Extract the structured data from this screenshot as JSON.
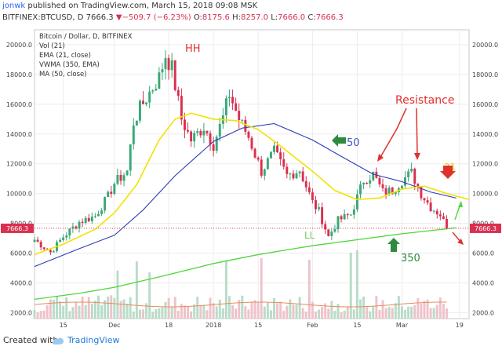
{
  "header": {
    "user": "jonwk",
    "published": "published on TradingView.com, March 15, 2018 09:08 MSK",
    "symbol": "BITFINEX:BTCUSD, D",
    "last": "7666.3",
    "change_arrow": "▼",
    "change": "−509.7 (−6.23%)",
    "o_label": "O:",
    "o": "8175.6",
    "h_label": "H:",
    "h": "8257.0",
    "l_label": "L:",
    "l": "7666.0",
    "c_label": "C:",
    "c": "7666.3"
  },
  "legend": [
    "Bitcoin / Dollar, D, BITFINEX",
    "Vol (21)",
    "EMA (21, close)",
    "VWMA (350, EMA)",
    "MA (50, close)"
  ],
  "annotations": {
    "hh": "HH",
    "resistance": "Resistance",
    "fifty": "50",
    "twentyone": "21",
    "ll": "LL",
    "three_fifty": "350"
  },
  "price_tag": "7666.3",
  "footer": {
    "created": "Created with",
    "brand": "TradingView"
  },
  "colors": {
    "up": "#3aa876",
    "down": "#d9304f",
    "ema21": "#f2e200",
    "ma50": "#2c3bb5",
    "vwma350": "#4fd63a",
    "volume_ma": "#e58d5e",
    "price_line": "#d9304f",
    "annotation_red": "#e0312c",
    "annotation_green": "#2e8b3e",
    "annotation_yellow": "#e6d200"
  },
  "chart_data": {
    "type": "candlestick",
    "interval": "D",
    "y_ticks": [
      2000,
      4000,
      6000,
      8000,
      10000,
      12000,
      14000,
      16000,
      18000,
      20000
    ],
    "y_tick_labels": [
      "2000.0",
      "4000.0",
      "6000.0",
      "8000.0",
      "10000.0",
      "12000.0",
      "14000.0",
      "16000.0",
      "18000.0",
      "20000.0"
    ],
    "ylim": [
      1600,
      21000
    ],
    "x_ticks": [
      "15",
      "Dec",
      "18",
      "2018",
      "15",
      "Feb",
      "15",
      "Mar",
      "19"
    ],
    "x_tick_dates": [
      "2017-11-15",
      "2017-12-01",
      "2017-12-18",
      "2018-01-01",
      "2018-01-15",
      "2018-02-01",
      "2018-02-15",
      "2018-03-01",
      "2018-03-19"
    ],
    "xlim": [
      "2017-11-06",
      "2018-03-22"
    ],
    "grid": true,
    "anchors": {
      "dates": [
        "2017-11-06",
        "2017-11-11",
        "2017-11-15",
        "2017-11-20",
        "2017-11-25",
        "2017-11-29",
        "2017-12-01",
        "2017-12-05",
        "2017-12-07",
        "2017-12-09",
        "2017-12-12",
        "2017-12-15",
        "2017-12-17",
        "2017-12-19",
        "2017-12-22",
        "2017-12-25",
        "2017-12-29",
        "2018-01-01",
        "2018-01-04",
        "2018-01-06",
        "2018-01-09",
        "2018-01-12",
        "2018-01-16",
        "2018-01-20",
        "2018-01-24",
        "2018-01-28",
        "2018-02-01",
        "2018-02-03",
        "2018-02-06",
        "2018-02-09",
        "2018-02-13",
        "2018-02-17",
        "2018-02-20",
        "2018-02-23",
        "2018-02-26",
        "2018-03-01",
        "2018-03-04",
        "2018-03-07",
        "2018-03-10",
        "2018-03-13",
        "2018-03-15"
      ],
      "close": [
        6900,
        6050,
        7100,
        8100,
        8500,
        9800,
        10700,
        11500,
        14800,
        15700,
        16800,
        17800,
        19300,
        18400,
        15000,
        13600,
        14500,
        13300,
        15100,
        16700,
        15000,
        13800,
        11500,
        12800,
        11200,
        11600,
        9400,
        8800,
        7100,
        8200,
        8600,
        10900,
        11300,
        10100,
        10200,
        10900,
        11400,
        10000,
        9100,
        8600,
        7666
      ]
    },
    "ema21": {
      "dates": [
        "2017-11-06",
        "2017-11-15",
        "2017-11-25",
        "2017-12-01",
        "2017-12-08",
        "2017-12-15",
        "2017-12-20",
        "2017-12-25",
        "2018-01-01",
        "2018-01-08",
        "2018-01-15",
        "2018-01-22",
        "2018-02-01",
        "2018-02-08",
        "2018-02-15",
        "2018-02-22",
        "2018-03-01",
        "2018-03-08",
        "2018-03-15",
        "2018-03-22"
      ],
      "values": [
        5900,
        6600,
        7600,
        8700,
        10600,
        13600,
        15000,
        15400,
        15000,
        14900,
        14300,
        13200,
        11500,
        10200,
        9600,
        9700,
        10300,
        10500,
        10000,
        9600
      ]
    },
    "ma50": {
      "dates": [
        "2017-11-06",
        "2017-11-20",
        "2017-12-01",
        "2017-12-10",
        "2017-12-20",
        "2018-01-01",
        "2018-01-10",
        "2018-01-20",
        "2018-02-01",
        "2018-02-10",
        "2018-02-20",
        "2018-03-01",
        "2018-03-10",
        "2018-03-18"
      ],
      "values": [
        5100,
        6300,
        7200,
        8900,
        11200,
        13500,
        14400,
        14700,
        13600,
        12500,
        11300,
        10800,
        10100,
        9700
      ]
    },
    "vwma350": {
      "dates": [
        "2017-11-06",
        "2017-11-20",
        "2017-12-01",
        "2017-12-15",
        "2018-01-01",
        "2018-01-15",
        "2018-02-01",
        "2018-02-15",
        "2018-03-01",
        "2018-03-18"
      ],
      "values": [
        2900,
        3300,
        3700,
        4400,
        5300,
        5900,
        6500,
        6900,
        7300,
        7700
      ]
    },
    "price_line": 7666.3
  }
}
